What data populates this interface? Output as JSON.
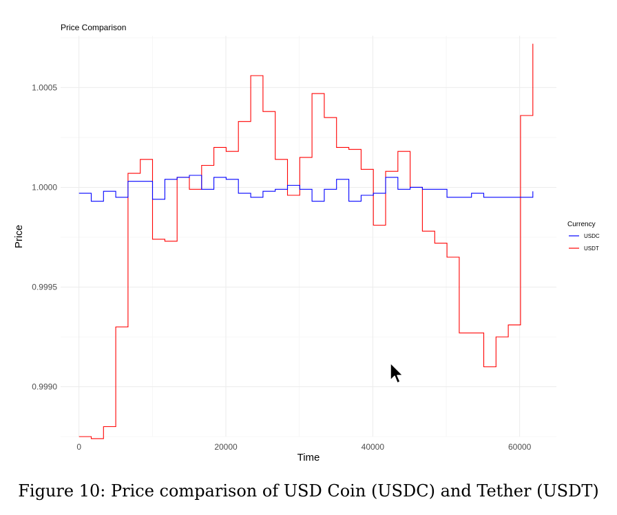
{
  "chart_data": {
    "type": "line",
    "title": "Price Comparison",
    "xlabel": "Time",
    "ylabel": "Price",
    "xlim": [
      -2500,
      65000
    ],
    "ylim": [
      0.99875,
      1.00076
    ],
    "x_ticks": [
      0,
      20000,
      40000,
      60000
    ],
    "x_tick_labels": [
      "0",
      "20000",
      "40000",
      "60000"
    ],
    "y_ticks": [
      0.999,
      0.9995,
      1.0,
      1.0005
    ],
    "y_tick_labels": [
      "0.9990",
      "0.9995",
      "1.0000",
      "1.0005"
    ],
    "grid": true,
    "step": true,
    "legend": {
      "title": "Currency",
      "position": "right"
    },
    "series": [
      {
        "name": "USDC",
        "color": "#0000ff",
        "x": [
          0,
          1670,
          3340,
          5010,
          6680,
          8350,
          10020,
          11690,
          13360,
          15030,
          16700,
          18370,
          20040,
          21710,
          23380,
          25050,
          26720,
          28390,
          30060,
          31730,
          33400,
          35070,
          36740,
          38410,
          40080,
          41750,
          43420,
          45090,
          46760,
          48430,
          50100,
          51770,
          53440,
          55110,
          56780,
          58450,
          60120,
          61790
        ],
        "values": [
          0.99997,
          0.99993,
          0.99998,
          0.99995,
          1.00003,
          1.00003,
          0.99994,
          1.00004,
          1.00005,
          1.00006,
          0.99999,
          1.00005,
          1.00004,
          0.99997,
          0.99995,
          0.99998,
          0.99999,
          1.00001,
          0.99999,
          0.99993,
          0.99999,
          1.00004,
          0.99993,
          0.99996,
          0.99997,
          1.00005,
          0.99999,
          1.0,
          0.99999,
          0.99999,
          0.99995,
          0.99995,
          0.99997,
          0.99995,
          0.99995,
          0.99995,
          0.99995,
          0.99998
        ]
      },
      {
        "name": "USDT",
        "color": "#ff0000",
        "x": [
          0,
          1670,
          3340,
          5010,
          6680,
          8350,
          10020,
          11690,
          13360,
          15030,
          16700,
          18370,
          20040,
          21710,
          23380,
          25050,
          26720,
          28390,
          30060,
          31730,
          33400,
          35070,
          36740,
          38410,
          40080,
          41750,
          43420,
          45090,
          46760,
          48430,
          50100,
          51770,
          53440,
          55110,
          56780,
          58450,
          60120,
          61790
        ],
        "values": [
          0.99875,
          0.99874,
          0.9988,
          0.9993,
          1.00007,
          1.00014,
          0.99974,
          0.99973,
          1.00005,
          0.99999,
          1.00011,
          1.0002,
          1.00018,
          1.00033,
          1.00056,
          1.00038,
          1.00014,
          0.99996,
          1.00015,
          1.00047,
          1.00035,
          1.0002,
          1.00019,
          1.00009,
          0.99981,
          1.00008,
          1.00018,
          1.0,
          0.99978,
          0.99972,
          0.99965,
          0.99927,
          0.99927,
          0.9991,
          0.99925,
          0.99931,
          1.00036,
          1.00072
        ]
      }
    ]
  },
  "caption": "Figure 10: Price comparison of USD Coin (USDC) and Tether (USDT)"
}
